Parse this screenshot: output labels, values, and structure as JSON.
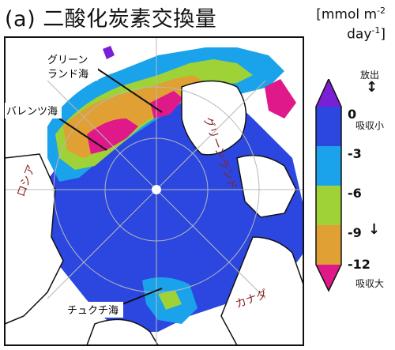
{
  "title": "(a) 二酸化炭素交換量",
  "units": {
    "line1": "[mmol m",
    "exp1": "-2",
    "line2": "day",
    "exp2": "-1",
    "close": "]"
  },
  "labels": {
    "greenland_1": "グリーン",
    "greenland_2": "ランド海",
    "barents": "バレンツ海",
    "chukchi": "チュクチ海",
    "russia": "ロシア",
    "canada": "カナダ",
    "greenland_land": "グリーンランド"
  },
  "colorbar": {
    "ticks": [
      "0",
      "-3",
      "-6",
      "-9",
      "-12"
    ],
    "colors": [
      "#7a1fd6",
      "#2b47e0",
      "#1aa3ea",
      "#9fd236",
      "#e0a033",
      "#e0198a"
    ]
  },
  "side_notes": {
    "release": "放出",
    "small": "吸収小",
    "large": "吸収大"
  },
  "icons": [
    "up-down-arrow-icon",
    "down-arrow-icon"
  ]
}
